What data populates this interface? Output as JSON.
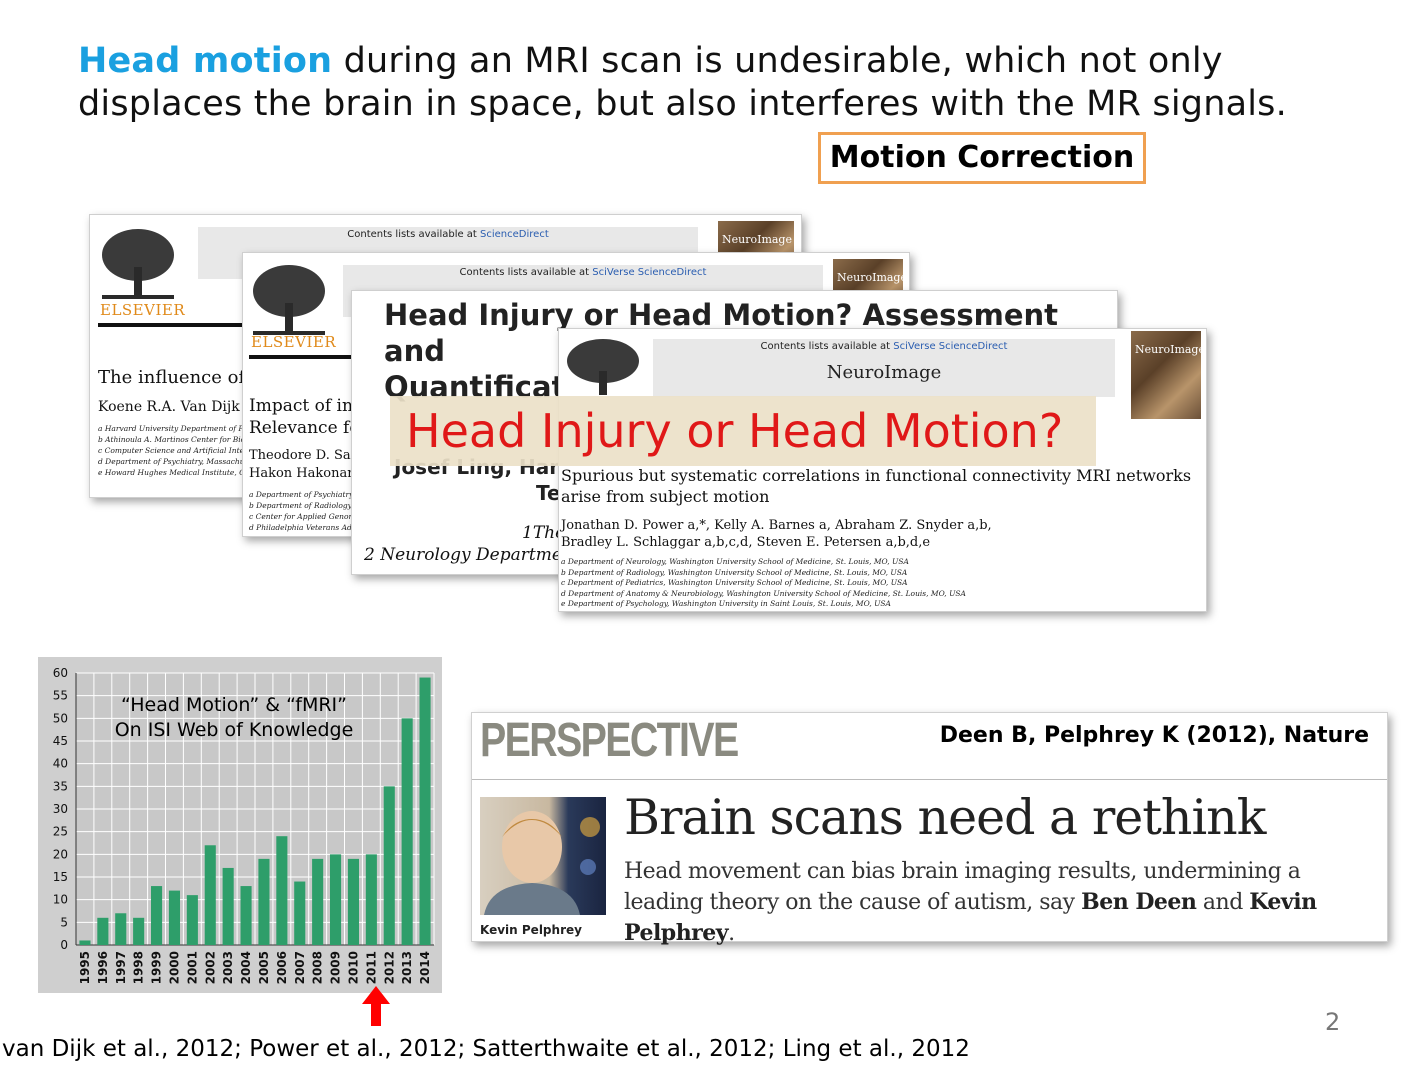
{
  "title": {
    "highlight": "Head motion",
    "rest_line1": " during an MRI scan is undesirable, which not only",
    "line2": "displaces the brain in space, but also interferes with the MR signals."
  },
  "motion_correction_label": "Motion Correction",
  "papers": {
    "p1": {
      "contents": "Contents lists available at ",
      "sciencedirect": "ScienceDirect",
      "elsevier": "ELSEVIER",
      "journal": "NeuroImage",
      "title_fragment": "The influence of h",
      "authors_fragment": "Koene R.A. Van Dijk",
      "affiliations": [
        "a Harvard University Department of P",
        "b Athinoula A. Martinos Center for Bio",
        "c Computer Science and Artificial Intel",
        "d Department of Psychiatry, Massachu",
        "e Howard Hughes Medical Institute, C"
      ]
    },
    "p2": {
      "contents": "Contents lists available at ",
      "sciencedirect": "SciVerse ScienceDirect",
      "elsevier": "ELSEVIER",
      "journal": "NeuroImage",
      "title_line1": "Impact of in-",
      "title_line2": "Relevance for",
      "authors_line1": "Theodore D. Satt",
      "authors_line2": "Hakon Hakonarse",
      "affiliations": [
        "a Department of Psychiatry, U",
        "b Department of Radiology, U",
        "c Center for Applied Genomic",
        "d Philadelphia Veterans Adm"
      ]
    },
    "p3": {
      "title_line1": "Head Injury or Head Motion? Assessment and",
      "title_line2": "Quantificati",
      "authors_fragment": "Josef Ling,  Han",
      "te_fragment": "Te",
      "aff1": "1The",
      "aff2": "2 Neurology Department,"
    },
    "p4": {
      "contents": "Contents lists available at ",
      "sciencedirect": "SciVerse ScienceDirect",
      "journal_name": "NeuroImage",
      "title": "Spurious but systematic correlations in functional connectivity MRI networks arise from subject motion",
      "authors_line1": "Jonathan D. Power a,*, Kelly A. Barnes a, Abraham Z. Snyder a,b,",
      "authors_line2": "Bradley L. Schlaggar a,b,c,d, Steven E. Petersen a,b,d,e",
      "affiliations": [
        "a Department of Neurology, Washington University School of Medicine, St. Louis, MO, USA",
        "b Department of Radiology, Washington University School of Medicine, St. Louis, MO, USA",
        "c Department of Pediatrics, Washington University School of Medicine, St. Louis, MO, USA",
        "d Department of Anatomy & Neurobiology, Washington University School of Medicine, St. Louis, MO, USA",
        "e Department of Psychology, Washington University in Saint Louis, St. Louis, MO, USA"
      ]
    }
  },
  "overlay_label": "Head Injury or Head Motion?",
  "chart_data": {
    "type": "bar",
    "caption_line1": "“Head Motion”  &  “fMRI”",
    "caption_line2": "On ISI Web of Knowledge",
    "categories": [
      "1995",
      "1996",
      "1997",
      "1998",
      "1999",
      "2000",
      "2001",
      "2002",
      "2003",
      "2004",
      "2005",
      "2006",
      "2007",
      "2008",
      "2009",
      "2010",
      "2011",
      "2012",
      "2013",
      "2014"
    ],
    "values": [
      1,
      6,
      7,
      6,
      13,
      12,
      11,
      22,
      17,
      13,
      19,
      24,
      14,
      19,
      20,
      19,
      20,
      35,
      50,
      59
    ],
    "ylim": [
      0,
      60
    ],
    "yticks": [
      0,
      5,
      10,
      15,
      20,
      25,
      30,
      35,
      40,
      45,
      50,
      55,
      60
    ],
    "grid": true,
    "bar_color": "#2e9e6a",
    "highlight_year": "2012",
    "arrow_color": "#ff0000"
  },
  "perspective": {
    "label": "PERSPECTIVE",
    "citation": "Deen B, Pelphrey K (2012), Nature",
    "headline": "Brain scans need a rethink",
    "sub_part1": "Head movement can bias brain imaging results, undermining a leading theory on the cause of autism, say ",
    "name1": "Ben Deen",
    "sub_and": " and ",
    "name2": "Kevin Pelphrey",
    "sub_end": ".",
    "photo_caption": "Kevin Pelphrey"
  },
  "page_number": "2",
  "references": "van Dijk et al., 2012; Power et al., 2012; Satterthwaite et al., 2012; Ling et al., 2012"
}
